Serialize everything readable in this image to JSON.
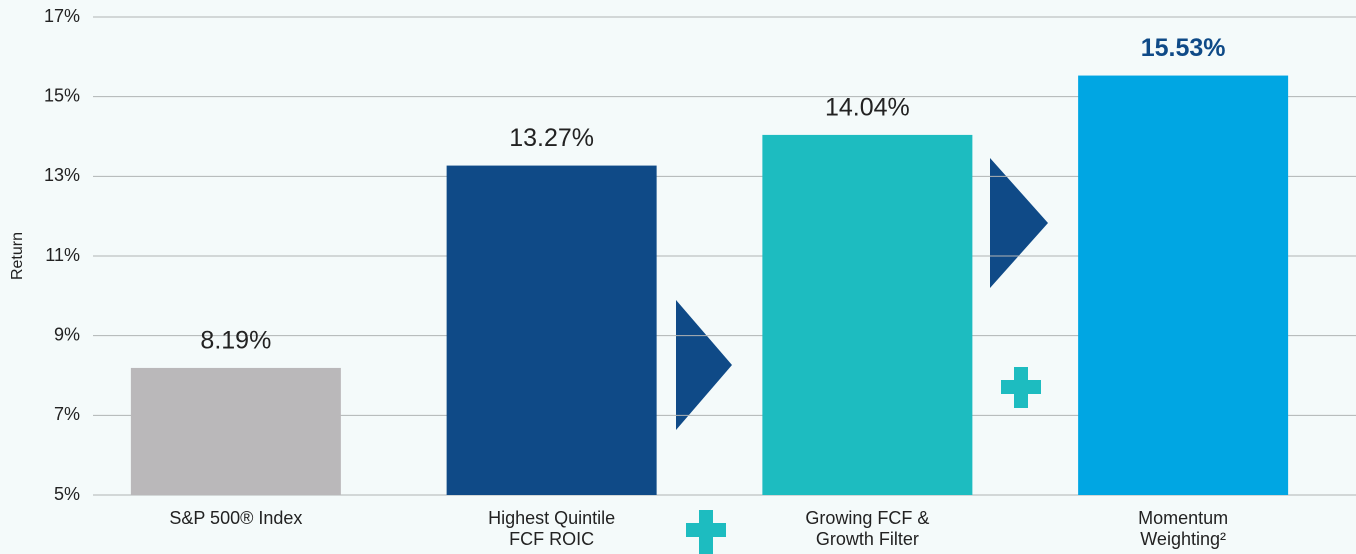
{
  "chart_data": {
    "type": "bar",
    "y_label": "Return",
    "categories": [
      "S&P 500® Index",
      "Highest Quintile FCF ROIC",
      "Growing FCF & Growth Filter",
      "Momentum Weighting²"
    ],
    "values": [
      8.19,
      13.27,
      14.04,
      15.53
    ],
    "value_labels": [
      "8.19%",
      "13.27%",
      "14.04%",
      "15.53%"
    ],
    "colors": [
      "#bab8ba",
      "#0f4a87",
      "#1dbcc0",
      "#00a6e3"
    ],
    "ylim": [
      5,
      17
    ],
    "yticks": [
      {
        "value": 5,
        "label": "5%"
      },
      {
        "value": 7,
        "label": "7%"
      },
      {
        "value": 9,
        "label": "9%"
      },
      {
        "value": 11,
        "label": "11%"
      },
      {
        "value": 13,
        "label": "13%"
      },
      {
        "value": 15,
        "label": "15%"
      },
      {
        "value": 17,
        "label": "17%"
      }
    ],
    "grid": true
  }
}
